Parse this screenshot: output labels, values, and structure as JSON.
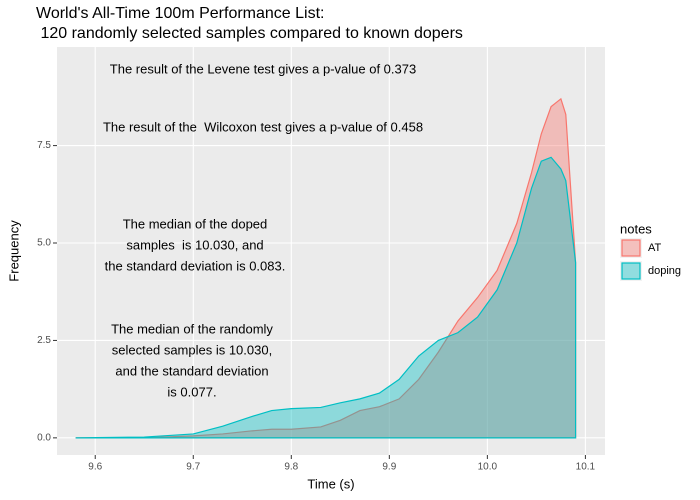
{
  "chart_data": {
    "type": "area",
    "title": "World's All-Time 100m Performance List:",
    "subtitle": " 120 randomly selected samples compared to known dopers",
    "x_label": "Time (s)",
    "y_label": "Frequency",
    "legend_title": "notes",
    "legend_position": "right",
    "annotations": [
      [
        "The result of the Levene test gives a p-value of 0.373"
      ],
      [
        "The result of the  Wilcoxon test gives a p-value of 0.458"
      ],
      [
        "The median of the doped",
        "samples  is 10.030, and",
        "the standard deviation is 0.083."
      ],
      [
        "The median of the randomly",
        "selected samples is 10.030,",
        "and the standard deviation",
        "is 0.077."
      ]
    ],
    "x": [
      9.58,
      9.65,
      9.7,
      9.73,
      9.76,
      9.78,
      9.8,
      9.83,
      9.85,
      9.87,
      9.89,
      9.91,
      9.93,
      9.95,
      9.97,
      9.99,
      10.01,
      10.03,
      10.045,
      10.055,
      10.065,
      10.075,
      10.08,
      10.09
    ],
    "series": [
      {
        "name": "AT",
        "color": "#F8766D",
        "values": [
          0,
          0,
          0.05,
          0.1,
          0.18,
          0.22,
          0.22,
          0.28,
          0.45,
          0.7,
          0.8,
          1.0,
          1.5,
          2.2,
          3.0,
          3.6,
          4.3,
          5.5,
          6.8,
          7.8,
          8.5,
          8.7,
          8.3,
          4.5
        ]
      },
      {
        "name": "doping",
        "color": "#00BFC4",
        "values": [
          0,
          0.02,
          0.1,
          0.3,
          0.55,
          0.7,
          0.75,
          0.78,
          0.9,
          1.0,
          1.15,
          1.5,
          2.1,
          2.5,
          2.7,
          3.1,
          3.8,
          5.0,
          6.4,
          7.1,
          7.2,
          6.9,
          6.6,
          4.5
        ]
      }
    ],
    "xlim": [
      9.561,
      10.12
    ],
    "xticks": [
      9.6,
      9.7,
      9.8,
      9.9,
      {
        "value": 10,
        "label": "10.0"
      },
      10.1
    ],
    "ylim": [
      -0.44,
      10.03
    ],
    "yticks": [
      {
        "value": 0,
        "label": "0.0"
      },
      2.5,
      {
        "value": 5,
        "label": "5.0"
      },
      7.5
    ],
    "grid": true
  }
}
